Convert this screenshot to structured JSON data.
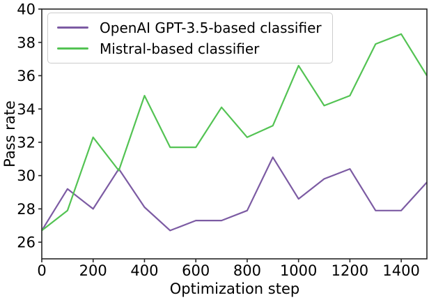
{
  "figure": {
    "background": "#ffffff",
    "axis_color": "#262626",
    "text_color": "#000000",
    "legend_border_color": "#cccccc"
  },
  "chart_data": {
    "type": "line",
    "title": "",
    "xlabel": "Optimization step",
    "ylabel": "Pass rate",
    "xlim": [
      0,
      1500
    ],
    "ylim": [
      25,
      40
    ],
    "xticks": [
      0,
      200,
      400,
      600,
      800,
      1000,
      1200,
      1400
    ],
    "yticks": [
      26,
      28,
      30,
      32,
      34,
      36,
      38,
      40
    ],
    "grid": false,
    "legend_position": "upper left",
    "x": [
      0,
      100,
      200,
      300,
      400,
      500,
      600,
      700,
      800,
      900,
      1000,
      1100,
      1200,
      1300,
      1400,
      1500
    ],
    "series": [
      {
        "name": "OpenAI GPT-3.5-based classifier",
        "color": "#7c5ba3",
        "values": [
          26.7,
          29.2,
          28.0,
          30.4,
          28.1,
          26.7,
          27.3,
          27.3,
          27.9,
          31.1,
          28.6,
          29.8,
          30.4,
          27.9,
          27.9,
          29.6
        ]
      },
      {
        "name": "Mistral-based classifier",
        "color": "#53c353",
        "values": [
          26.7,
          27.9,
          32.3,
          30.3,
          34.8,
          31.7,
          31.7,
          34.1,
          32.3,
          33.0,
          36.6,
          34.2,
          34.8,
          37.9,
          38.5,
          36.0
        ]
      }
    ]
  }
}
